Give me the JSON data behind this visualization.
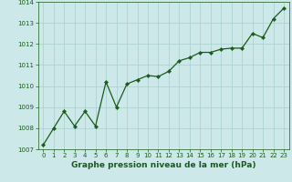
{
  "x": [
    0,
    1,
    2,
    3,
    4,
    5,
    6,
    7,
    8,
    9,
    10,
    11,
    12,
    13,
    14,
    15,
    16,
    17,
    18,
    19,
    20,
    21,
    22,
    23
  ],
  "y": [
    1007.2,
    1008.0,
    1008.8,
    1008.1,
    1008.8,
    1008.1,
    1010.2,
    1009.0,
    1010.1,
    1010.3,
    1010.5,
    1010.45,
    1010.7,
    1011.2,
    1011.35,
    1011.6,
    1011.6,
    1011.75,
    1011.8,
    1011.8,
    1012.5,
    1012.3,
    1013.2,
    1013.7
  ],
  "line_color": "#1a5c1a",
  "marker": "D",
  "marker_size": 2.2,
  "linewidth": 0.9,
  "bg_color": "#cce8e8",
  "grid_color": "#aacece",
  "ylim": [
    1007,
    1014
  ],
  "xlim": [
    -0.5,
    23.5
  ],
  "yticks": [
    1007,
    1008,
    1009,
    1010,
    1011,
    1012,
    1013,
    1014
  ],
  "xticks": [
    0,
    1,
    2,
    3,
    4,
    5,
    6,
    7,
    8,
    9,
    10,
    11,
    12,
    13,
    14,
    15,
    16,
    17,
    18,
    19,
    20,
    21,
    22,
    23
  ],
  "tick_color": "#1a5c1a",
  "tick_fontsize": 5.0,
  "title": "Graphe pression niveau de la mer (hPa)",
  "title_fontsize": 6.5,
  "title_color": "#1a5c1a",
  "title_fontweight": "bold"
}
